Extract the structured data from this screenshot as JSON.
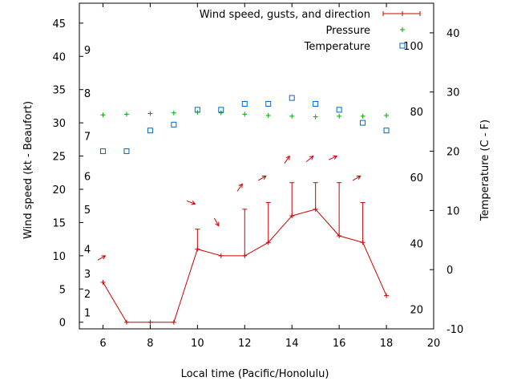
{
  "chart_data": {
    "type": "line",
    "title": "",
    "xlabel": "Local time (Pacific/Honolulu)",
    "ylabel": "Wind speed (kt - Beaufort)",
    "y2label": "Temperature (C - F)",
    "xlim": [
      5,
      20
    ],
    "ylim": [
      -1,
      48
    ],
    "y2lim": [
      -10,
      45
    ],
    "x_ticks": [
      6,
      8,
      10,
      12,
      14,
      16,
      18,
      20
    ],
    "y_ticks": [
      0,
      5,
      10,
      15,
      20,
      25,
      30,
      35,
      40,
      45
    ],
    "y2_ticks": [
      -10,
      0,
      10,
      20,
      30,
      40
    ],
    "beaufort_labels": [
      {
        "y": 1.5,
        "label": "1"
      },
      {
        "y": 4.3,
        "label": "2"
      },
      {
        "y": 7.3,
        "label": "3"
      },
      {
        "y": 11,
        "label": "4"
      },
      {
        "y": 17,
        "label": "5"
      },
      {
        "y": 22,
        "label": "6"
      },
      {
        "y": 28,
        "label": "7"
      },
      {
        "y": 34.5,
        "label": "8"
      },
      {
        "y": 41,
        "label": "9"
      }
    ],
    "fahrenheit_labels": [
      {
        "c": -6.7,
        "label": "20"
      },
      {
        "c": 4.4,
        "label": "40"
      },
      {
        "c": 15.6,
        "label": "60"
      },
      {
        "c": 26.7,
        "label": "80"
      },
      {
        "c": 37.8,
        "label": "100"
      }
    ],
    "legend": {
      "position": "top-right",
      "entries": [
        "Wind speed, gusts, and direction",
        "Pressure",
        "Temperature"
      ]
    },
    "series": [
      {
        "name": "Wind speed, gusts, and direction",
        "color": "#cc0000",
        "axis": "left",
        "x": [
          6,
          7,
          8,
          9,
          10,
          11,
          12,
          13,
          14,
          15,
          16,
          17,
          18
        ],
        "values": [
          6,
          0,
          0,
          0,
          11,
          10,
          10,
          12,
          16,
          17,
          13,
          12,
          4
        ],
        "gusts": [
          null,
          null,
          null,
          null,
          14,
          null,
          17,
          18,
          21,
          21,
          21,
          18,
          null
        ]
      },
      {
        "name": "Pressure",
        "color": "#00aa00",
        "axis": "left",
        "x": [
          6,
          7,
          8,
          9,
          10,
          11,
          12,
          13,
          14,
          15,
          16,
          17,
          18
        ],
        "values": [
          31.2,
          31.3,
          31.4,
          31.5,
          31.6,
          31.5,
          31.3,
          31.1,
          31.0,
          30.9,
          31.0,
          31.0,
          31.1
        ]
      },
      {
        "name": "Temperature",
        "color": "#0066cc",
        "axis": "right",
        "x": [
          6,
          7,
          8,
          9,
          10,
          11,
          12,
          13,
          14,
          15,
          16,
          17,
          18
        ],
        "values": [
          20,
          20,
          23.5,
          24.5,
          27,
          27,
          28,
          28,
          29,
          28,
          27,
          24.8,
          23.5
        ]
      }
    ],
    "wind_direction_arrows": [
      {
        "x": 6.1,
        "y": 10,
        "angle": 150
      },
      {
        "x": 9.9,
        "y": 17.8,
        "angle": 200
      },
      {
        "x": 10.9,
        "y": 14.5,
        "angle": 240
      },
      {
        "x": 11.9,
        "y": 20.8,
        "angle": 125
      },
      {
        "x": 12.9,
        "y": 22,
        "angle": 150
      },
      {
        "x": 13.9,
        "y": 25,
        "angle": 125
      },
      {
        "x": 14.9,
        "y": 25,
        "angle": 140
      },
      {
        "x": 15.9,
        "y": 25,
        "angle": 155
      },
      {
        "x": 16.9,
        "y": 22,
        "angle": 150
      }
    ]
  }
}
